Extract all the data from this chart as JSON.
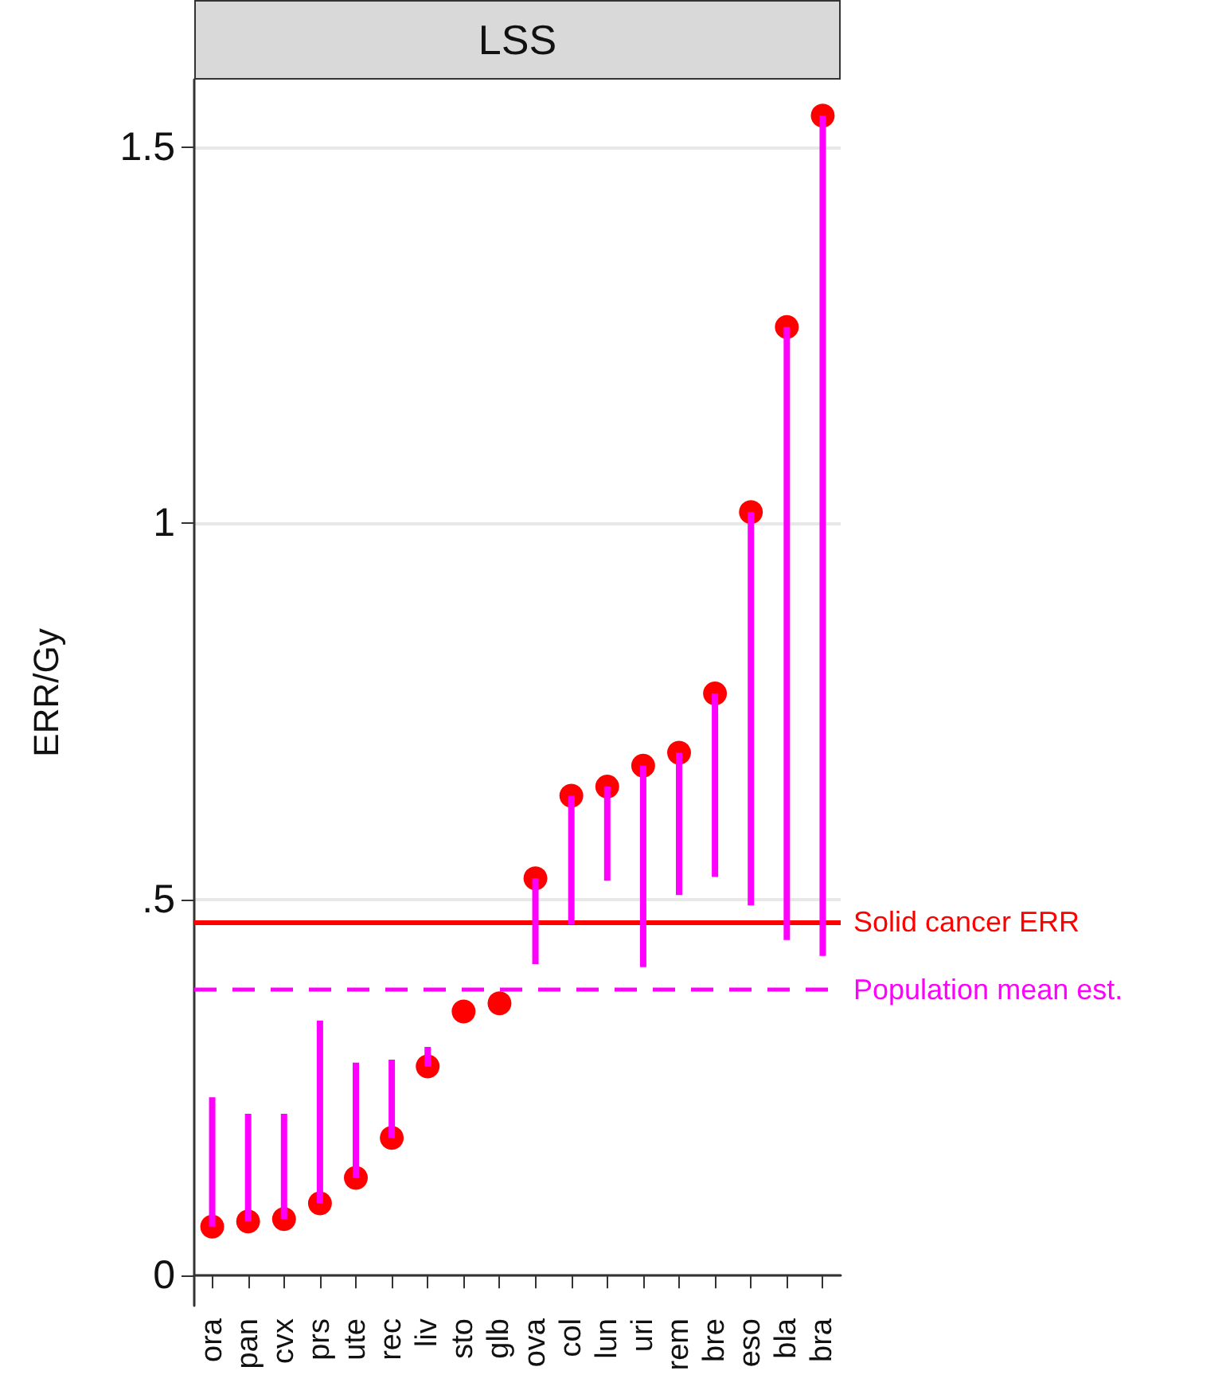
{
  "chart_data": {
    "type": "scatter",
    "title": "LSS",
    "ylabel": "ERR/Gy",
    "categories": [
      "ora",
      "pan",
      "cvx",
      "prs",
      "ute",
      "rec",
      "liv",
      "sto",
      "glb",
      "ova",
      "col",
      "lun",
      "uri",
      "rem",
      "bre",
      "eso",
      "bla",
      "bra"
    ],
    "ylim": [
      -0.04,
      1.59
    ],
    "yticks": [
      0,
      {
        "value": 0.5,
        "label": ".5"
      },
      1,
      1.5
    ],
    "grid": "y",
    "marker": "circle",
    "series": [
      {
        "type": "bar",
        "color": "#ff00ff",
        "base": [
          0.065,
          0.072,
          0.075,
          0.096,
          0.13,
          0.183,
          0.278,
          null,
          null,
          0.414,
          0.467,
          0.525,
          0.41,
          0.506,
          0.53,
          0.492,
          0.446,
          0.425
        ],
        "values": [
          0.172,
          0.143,
          0.14,
          0.243,
          0.153,
          0.104,
          0.026,
          null,
          null,
          0.114,
          0.171,
          0.125,
          0.268,
          0.189,
          0.244,
          0.523,
          0.815,
          1.117
        ]
      },
      {
        "color": "#ff0000",
        "values": [
          0.065,
          0.072,
          0.075,
          0.096,
          0.13,
          0.183,
          0.278,
          0.351,
          0.362,
          0.528,
          0.638,
          0.65,
          0.678,
          0.695,
          0.774,
          1.015,
          1.261,
          1.542
        ]
      }
    ],
    "ref_lines": [
      {
        "axis": "y",
        "value": 0.469,
        "label": "Solid cancer ERR",
        "color": "#ff0000",
        "line_style": "solid"
      },
      {
        "axis": "y",
        "value": 0.378,
        "label": "Population mean est.",
        "color": "#ff00ff",
        "line_style": "dashed"
      }
    ]
  }
}
